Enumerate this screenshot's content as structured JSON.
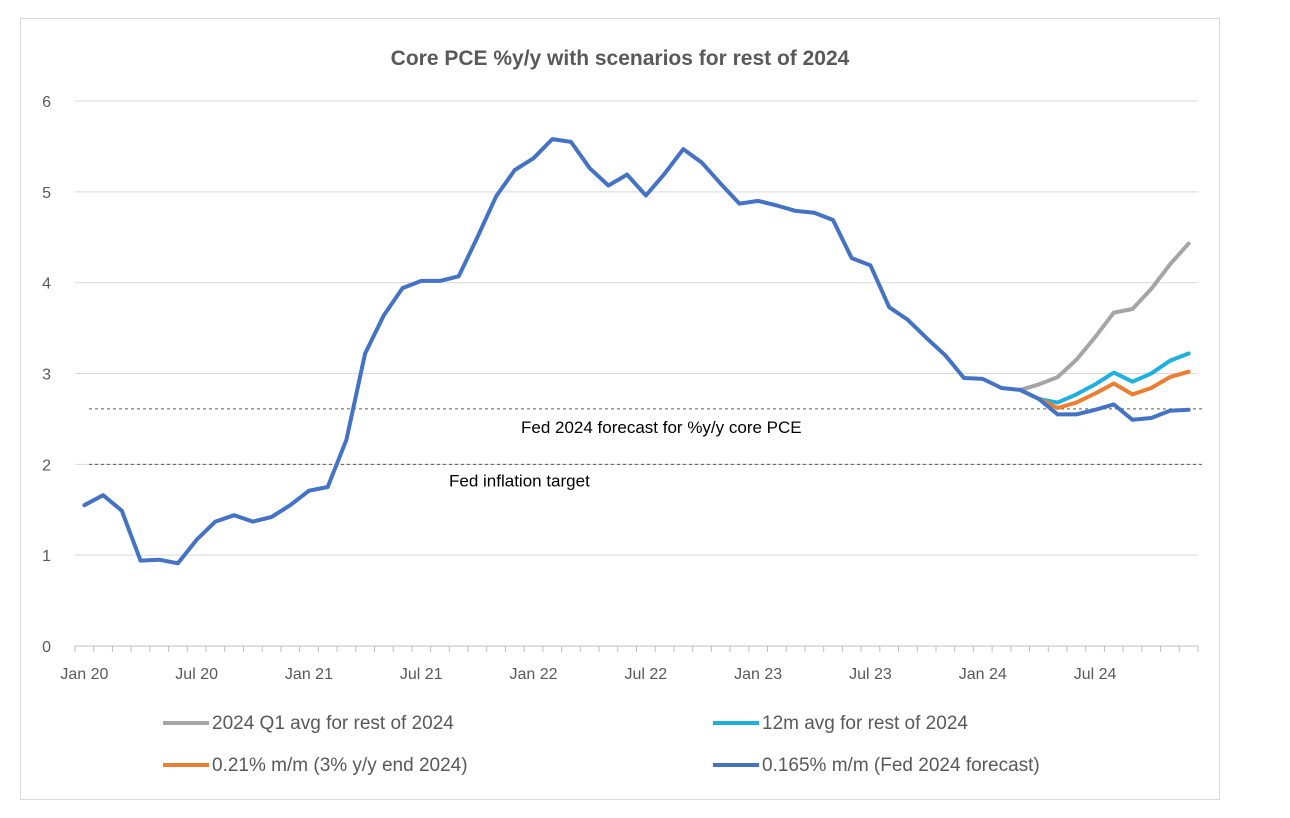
{
  "chart_data": {
    "type": "line",
    "title": "Core PCE %y/y with scenarios for rest of 2024",
    "xlabel": "",
    "ylabel": "",
    "ylim": [
      0,
      6
    ],
    "yticks": [
      0,
      1,
      2,
      3,
      4,
      5,
      6
    ],
    "x_tick_labels": [
      "Jan 20",
      "Jul 20",
      "Jan 21",
      "Jul 21",
      "Jan 22",
      "Jul 22",
      "Jan 23",
      "Jul 23",
      "Jan 24",
      "Jul 24"
    ],
    "x_months_start": "Jan 2020",
    "x_months_count": 60,
    "grid": true,
    "legend_position": "bottom",
    "series": [
      {
        "name": "2024 Q1 avg for rest of 2024",
        "color": "#a5a5a5",
        "start_index": 50,
        "values": [
          2.82,
          2.88,
          2.96,
          3.15,
          3.4,
          3.67,
          3.71,
          3.93,
          4.2,
          4.43
        ]
      },
      {
        "name": "12m avg for rest of 2024",
        "color": "#1fb0e0",
        "start_index": 50,
        "values": [
          2.82,
          2.72,
          2.68,
          2.77,
          2.88,
          3.01,
          2.91,
          3.0,
          3.14,
          3.22
        ]
      },
      {
        "name": "0.21% m/m (3% y/y end 2024)",
        "color": "#ed7d31",
        "start_index": 50,
        "values": [
          2.82,
          2.72,
          2.62,
          2.68,
          2.78,
          2.89,
          2.77,
          2.84,
          2.96,
          3.02
        ]
      },
      {
        "name": "0.165% m/m (Fed 2024 forecast)",
        "color": "#4472c4",
        "start_index": 0,
        "values": [
          1.55,
          1.66,
          1.49,
          0.94,
          0.95,
          0.91,
          1.17,
          1.37,
          1.44,
          1.37,
          1.42,
          1.55,
          1.71,
          1.75,
          2.27,
          3.22,
          3.64,
          3.94,
          4.02,
          4.02,
          4.07,
          4.5,
          4.95,
          5.24,
          5.37,
          5.58,
          5.55,
          5.26,
          5.07,
          5.19,
          4.96,
          5.2,
          5.47,
          5.32,
          5.09,
          4.87,
          4.9,
          4.85,
          4.79,
          4.77,
          4.69,
          4.27,
          4.19,
          3.73,
          3.59,
          3.39,
          3.2,
          2.95,
          2.94,
          2.84,
          2.82,
          2.72,
          2.55,
          2.55,
          2.6,
          2.66,
          2.49,
          2.51,
          2.59,
          2.6
        ]
      }
    ],
    "reference_lines": [
      {
        "value": 2.61,
        "label": "Fed 2024 forecast for %y/y core PCE"
      },
      {
        "value": 2.0,
        "label": "Fed inflation target"
      }
    ]
  }
}
